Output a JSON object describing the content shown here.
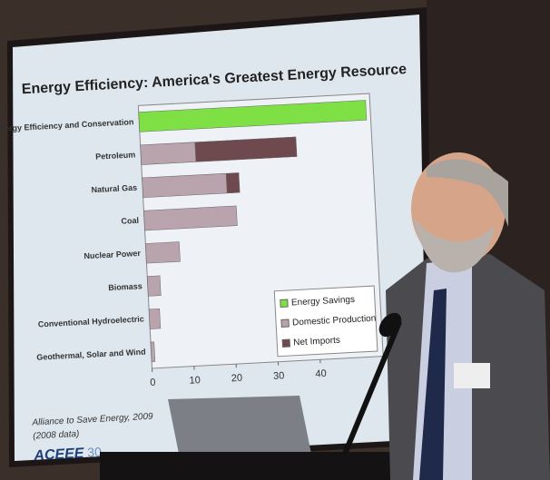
{
  "chart_data": {
    "type": "bar",
    "orientation": "horizontal",
    "stacked": true,
    "title": "Energy Efficiency: America's Greatest Energy Resource",
    "categories": [
      "Energy Efficiency and Conservation",
      "Petroleum",
      "Natural Gas",
      "Coal",
      "Nuclear Power",
      "Biomass",
      "Conventional Hydroelectric",
      "Geothermal, Solar and Wind"
    ],
    "series": [
      {
        "name": "Energy Savings",
        "color": "#7ee044",
        "values": [
          54,
          null,
          null,
          null,
          null,
          null,
          null,
          null
        ]
      },
      {
        "name": "Domestic Production",
        "color": "#b9a3ad",
        "values": [
          null,
          13,
          20,
          22,
          8,
          3,
          2.5,
          0.8
        ]
      },
      {
        "name": "Net Imports",
        "color": "#6e4a4e",
        "values": [
          null,
          24,
          3,
          null,
          null,
          null,
          null,
          null
        ]
      }
    ],
    "xlim": [
      0,
      55
    ],
    "xticks": [
      0,
      10,
      20,
      30,
      40
    ],
    "legend": "bottom-right"
  },
  "footer": {
    "source": "Alliance to Save Energy, 2009",
    "note": "(2008 data)",
    "logo": "ACEEE",
    "logo_badge": "30"
  }
}
